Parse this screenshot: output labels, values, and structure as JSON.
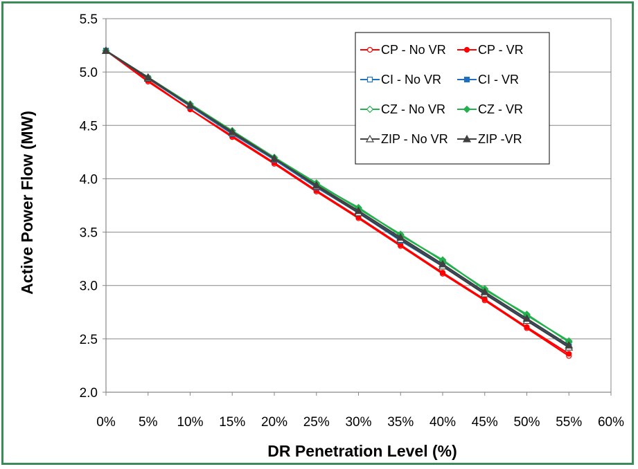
{
  "chart_data": {
    "type": "line",
    "title": "",
    "xlabel": "DR Penetration Level (%)",
    "ylabel": "Active Power Flow (MW)",
    "x": [
      0,
      5,
      10,
      15,
      20,
      25,
      30,
      35,
      40,
      45,
      50,
      55
    ],
    "xlim": [
      0,
      60
    ],
    "ylim": [
      2.0,
      5.5
    ],
    "x_ticks": [
      "0%",
      "5%",
      "10%",
      "15%",
      "20%",
      "25%",
      "30%",
      "35%",
      "40%",
      "45%",
      "50%",
      "55%",
      "60%"
    ],
    "y_ticks": [
      "2.0",
      "2.5",
      "3.0",
      "3.5",
      "4.0",
      "4.5",
      "5.0",
      "5.5"
    ],
    "grid": "horizontal",
    "legend_position": "top-right",
    "series": [
      {
        "name": "CP - No VR",
        "color": "#ff0000",
        "marker": "circle-open",
        "values": [
          5.2,
          4.91,
          4.65,
          4.39,
          4.14,
          3.88,
          3.63,
          3.37,
          3.11,
          2.86,
          2.6,
          2.34
        ]
      },
      {
        "name": "CP - VR",
        "color": "#ff0000",
        "marker": "circle-filled",
        "values": [
          5.2,
          4.92,
          4.65,
          4.4,
          4.15,
          3.89,
          3.64,
          3.38,
          3.12,
          2.87,
          2.61,
          2.36
        ]
      },
      {
        "name": "CI - No VR",
        "color": "#1f6fbf",
        "marker": "square-open",
        "values": [
          5.2,
          4.94,
          4.68,
          4.42,
          4.18,
          3.92,
          3.68,
          3.42,
          3.18,
          2.92,
          2.67,
          2.42
        ]
      },
      {
        "name": "CI - VR",
        "color": "#1f6fbf",
        "marker": "square-filled",
        "values": [
          5.2,
          4.94,
          4.68,
          4.43,
          4.18,
          3.93,
          3.69,
          3.44,
          3.19,
          2.93,
          2.68,
          2.43
        ]
      },
      {
        "name": "CZ - No VR",
        "color": "#22b14c",
        "marker": "diamond-open",
        "values": [
          5.2,
          4.95,
          4.7,
          4.45,
          4.2,
          3.96,
          3.72,
          3.48,
          3.23,
          2.97,
          2.72,
          2.48
        ]
      },
      {
        "name": "CZ - VR",
        "color": "#22b14c",
        "marker": "diamond-filled",
        "values": [
          5.2,
          4.95,
          4.7,
          4.45,
          4.2,
          3.95,
          3.73,
          3.47,
          3.24,
          2.96,
          2.73,
          2.47
        ]
      },
      {
        "name": "ZIP - No VR",
        "color": "#404040",
        "marker": "triangle-open",
        "values": [
          5.2,
          4.94,
          4.69,
          4.43,
          4.19,
          3.93,
          3.68,
          3.43,
          3.18,
          2.92,
          2.67,
          2.42
        ]
      },
      {
        "name": "ZIP -VR",
        "color": "#404040",
        "marker": "triangle-filled",
        "values": [
          5.2,
          4.95,
          4.69,
          4.44,
          4.19,
          3.94,
          3.7,
          3.45,
          3.2,
          2.94,
          2.69,
          2.44
        ]
      }
    ]
  }
}
